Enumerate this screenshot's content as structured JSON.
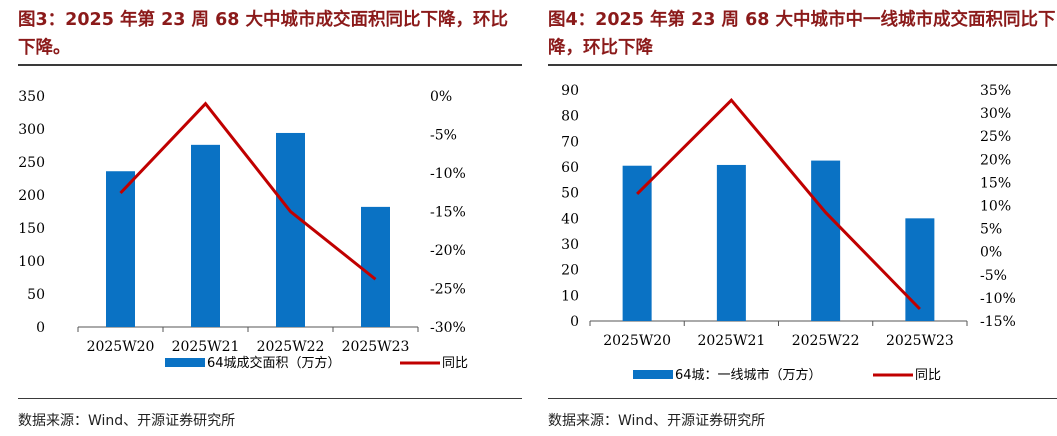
{
  "left": {
    "title": "图3：2025 年第 23 周 68 大中城市成交面积同比下降，环比下降。",
    "source": "数据来源：Wind、开源证券研究所",
    "colors": {
      "bar": "#0a72c4",
      "line": "#c00000"
    },
    "chart_data": {
      "type": "bar",
      "categories": [
        "2025W20",
        "2025W21",
        "2025W22",
        "2025W23"
      ],
      "series": [
        {
          "name": "64城成交面积（万方）",
          "type": "bar",
          "axis": "left",
          "values": [
            236,
            276,
            294,
            182
          ]
        },
        {
          "name": "同比",
          "type": "line",
          "axis": "right",
          "values": [
            -12.6,
            -1.0,
            -15.0,
            -23.8
          ]
        }
      ],
      "ylim": [
        0,
        350
      ],
      "yticks": [
        "350",
        "300",
        "250",
        "200",
        "150",
        "100",
        "50",
        "0"
      ],
      "y2lim": [
        -30,
        0
      ],
      "y2ticks": [
        "0%",
        "-5%",
        "-10%",
        "-15%",
        "-20%",
        "-25%",
        "-30%"
      ],
      "legend_position": "bottom"
    }
  },
  "right": {
    "title": "图4：2025 年第 23 周 68 大中城市中一线城市成交面积同比下降，环比下降",
    "source": "数据来源：Wind、开源证券研究所",
    "colors": {
      "bar": "#0a72c4",
      "line": "#c00000"
    },
    "chart_data": {
      "type": "bar",
      "categories": [
        "2025W20",
        "2025W21",
        "2025W22",
        "2025W23"
      ],
      "series": [
        {
          "name": "64城：一线城市（万方）",
          "type": "bar",
          "axis": "left",
          "values": [
            60.5,
            60.8,
            62.5,
            40
          ]
        },
        {
          "name": "同比",
          "type": "line",
          "axis": "right",
          "values": [
            12.5,
            32.8,
            8.5,
            -12.4
          ]
        }
      ],
      "ylim": [
        0,
        90
      ],
      "yticks": [
        "90",
        "80",
        "70",
        "60",
        "50",
        "40",
        "30",
        "20",
        "10",
        "0"
      ],
      "y2lim": [
        -15,
        35
      ],
      "y2ticks": [
        "35%",
        "30%",
        "25%",
        "20%",
        "15%",
        "10%",
        "5%",
        "0%",
        "-5%",
        "-10%",
        "-15%"
      ],
      "legend_position": "bottom"
    }
  }
}
